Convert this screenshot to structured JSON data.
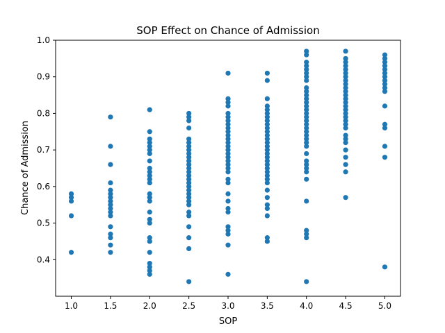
{
  "chart_data": {
    "type": "scatter",
    "title": "SOP Effect on Chance of Admission",
    "xlabel": "SOP",
    "ylabel": "Chance of Admission",
    "xlim": [
      0.8,
      5.2
    ],
    "ylim": [
      0.3,
      1.0
    ],
    "x_ticks": [
      "1.0",
      "1.5",
      "2.0",
      "2.5",
      "3.0",
      "3.5",
      "4.0",
      "4.5",
      "5.0"
    ],
    "y_ticks": [
      "0.4",
      "0.5",
      "0.6",
      "0.7",
      "0.8",
      "0.9",
      "1.0"
    ],
    "grid": false,
    "marker_color": "#1f77b4",
    "series": [
      {
        "points": [
          [
            1.0,
            0.58
          ],
          [
            1.0,
            0.57
          ],
          [
            1.0,
            0.56
          ],
          [
            1.0,
            0.52
          ],
          [
            1.0,
            0.42
          ],
          [
            1.5,
            0.79
          ],
          [
            1.5,
            0.71
          ],
          [
            1.5,
            0.66
          ],
          [
            1.5,
            0.61
          ],
          [
            1.5,
            0.59
          ],
          [
            1.5,
            0.58
          ],
          [
            1.5,
            0.57
          ],
          [
            1.5,
            0.56
          ],
          [
            1.5,
            0.55
          ],
          [
            1.5,
            0.54
          ],
          [
            1.5,
            0.53
          ],
          [
            1.5,
            0.52
          ],
          [
            1.5,
            0.49
          ],
          [
            1.5,
            0.47
          ],
          [
            1.5,
            0.46
          ],
          [
            1.5,
            0.44
          ],
          [
            1.5,
            0.42
          ],
          [
            2.0,
            0.81
          ],
          [
            2.0,
            0.75
          ],
          [
            2.0,
            0.73
          ],
          [
            2.0,
            0.72
          ],
          [
            2.0,
            0.71
          ],
          [
            2.0,
            0.7
          ],
          [
            2.0,
            0.69
          ],
          [
            2.0,
            0.67
          ],
          [
            2.0,
            0.65
          ],
          [
            2.0,
            0.64
          ],
          [
            2.0,
            0.63
          ],
          [
            2.0,
            0.62
          ],
          [
            2.0,
            0.61
          ],
          [
            2.0,
            0.58
          ],
          [
            2.0,
            0.57
          ],
          [
            2.0,
            0.56
          ],
          [
            2.0,
            0.53
          ],
          [
            2.0,
            0.51
          ],
          [
            2.0,
            0.5
          ],
          [
            2.0,
            0.46
          ],
          [
            2.0,
            0.45
          ],
          [
            2.0,
            0.42
          ],
          [
            2.0,
            0.39
          ],
          [
            2.0,
            0.38
          ],
          [
            2.0,
            0.37
          ],
          [
            2.0,
            0.36
          ],
          [
            2.5,
            0.8
          ],
          [
            2.5,
            0.79
          ],
          [
            2.5,
            0.78
          ],
          [
            2.5,
            0.76
          ],
          [
            2.5,
            0.73
          ],
          [
            2.5,
            0.72
          ],
          [
            2.5,
            0.71
          ],
          [
            2.5,
            0.7
          ],
          [
            2.5,
            0.69
          ],
          [
            2.5,
            0.68
          ],
          [
            2.5,
            0.67
          ],
          [
            2.5,
            0.66
          ],
          [
            2.5,
            0.65
          ],
          [
            2.5,
            0.64
          ],
          [
            2.5,
            0.63
          ],
          [
            2.5,
            0.62
          ],
          [
            2.5,
            0.61
          ],
          [
            2.5,
            0.6
          ],
          [
            2.5,
            0.59
          ],
          [
            2.5,
            0.58
          ],
          [
            2.5,
            0.57
          ],
          [
            2.5,
            0.56
          ],
          [
            2.5,
            0.55
          ],
          [
            2.5,
            0.53
          ],
          [
            2.5,
            0.52
          ],
          [
            2.5,
            0.49
          ],
          [
            2.5,
            0.46
          ],
          [
            2.5,
            0.43
          ],
          [
            2.5,
            0.34
          ],
          [
            3.0,
            0.91
          ],
          [
            3.0,
            0.84
          ],
          [
            3.0,
            0.83
          ],
          [
            3.0,
            0.82
          ],
          [
            3.0,
            0.8
          ],
          [
            3.0,
            0.79
          ],
          [
            3.0,
            0.78
          ],
          [
            3.0,
            0.77
          ],
          [
            3.0,
            0.76
          ],
          [
            3.0,
            0.75
          ],
          [
            3.0,
            0.74
          ],
          [
            3.0,
            0.73
          ],
          [
            3.0,
            0.72
          ],
          [
            3.0,
            0.71
          ],
          [
            3.0,
            0.7
          ],
          [
            3.0,
            0.69
          ],
          [
            3.0,
            0.68
          ],
          [
            3.0,
            0.67
          ],
          [
            3.0,
            0.66
          ],
          [
            3.0,
            0.65
          ],
          [
            3.0,
            0.64
          ],
          [
            3.0,
            0.62
          ],
          [
            3.0,
            0.61
          ],
          [
            3.0,
            0.58
          ],
          [
            3.0,
            0.56
          ],
          [
            3.0,
            0.54
          ],
          [
            3.0,
            0.53
          ],
          [
            3.0,
            0.49
          ],
          [
            3.0,
            0.48
          ],
          [
            3.0,
            0.47
          ],
          [
            3.0,
            0.44
          ],
          [
            3.0,
            0.36
          ],
          [
            3.5,
            0.91
          ],
          [
            3.5,
            0.89
          ],
          [
            3.5,
            0.84
          ],
          [
            3.5,
            0.82
          ],
          [
            3.5,
            0.81
          ],
          [
            3.5,
            0.8
          ],
          [
            3.5,
            0.79
          ],
          [
            3.5,
            0.78
          ],
          [
            3.5,
            0.77
          ],
          [
            3.5,
            0.76
          ],
          [
            3.5,
            0.75
          ],
          [
            3.5,
            0.74
          ],
          [
            3.5,
            0.73
          ],
          [
            3.5,
            0.72
          ],
          [
            3.5,
            0.71
          ],
          [
            3.5,
            0.7
          ],
          [
            3.5,
            0.69
          ],
          [
            3.5,
            0.68
          ],
          [
            3.5,
            0.67
          ],
          [
            3.5,
            0.66
          ],
          [
            3.5,
            0.65
          ],
          [
            3.5,
            0.64
          ],
          [
            3.5,
            0.63
          ],
          [
            3.5,
            0.62
          ],
          [
            3.5,
            0.61
          ],
          [
            3.5,
            0.59
          ],
          [
            3.5,
            0.57
          ],
          [
            3.5,
            0.55
          ],
          [
            3.5,
            0.54
          ],
          [
            3.5,
            0.52
          ],
          [
            3.5,
            0.46
          ],
          [
            3.5,
            0.45
          ],
          [
            4.0,
            0.97
          ],
          [
            4.0,
            0.96
          ],
          [
            4.0,
            0.94
          ],
          [
            4.0,
            0.93
          ],
          [
            4.0,
            0.92
          ],
          [
            4.0,
            0.91
          ],
          [
            4.0,
            0.9
          ],
          [
            4.0,
            0.89
          ],
          [
            4.0,
            0.87
          ],
          [
            4.0,
            0.86
          ],
          [
            4.0,
            0.85
          ],
          [
            4.0,
            0.84
          ],
          [
            4.0,
            0.83
          ],
          [
            4.0,
            0.82
          ],
          [
            4.0,
            0.81
          ],
          [
            4.0,
            0.8
          ],
          [
            4.0,
            0.79
          ],
          [
            4.0,
            0.78
          ],
          [
            4.0,
            0.77
          ],
          [
            4.0,
            0.76
          ],
          [
            4.0,
            0.75
          ],
          [
            4.0,
            0.74
          ],
          [
            4.0,
            0.73
          ],
          [
            4.0,
            0.72
          ],
          [
            4.0,
            0.71
          ],
          [
            4.0,
            0.69
          ],
          [
            4.0,
            0.67
          ],
          [
            4.0,
            0.66
          ],
          [
            4.0,
            0.65
          ],
          [
            4.0,
            0.64
          ],
          [
            4.0,
            0.62
          ],
          [
            4.0,
            0.56
          ],
          [
            4.0,
            0.48
          ],
          [
            4.0,
            0.47
          ],
          [
            4.0,
            0.46
          ],
          [
            4.0,
            0.34
          ],
          [
            4.5,
            0.97
          ],
          [
            4.5,
            0.95
          ],
          [
            4.5,
            0.94
          ],
          [
            4.5,
            0.93
          ],
          [
            4.5,
            0.92
          ],
          [
            4.5,
            0.91
          ],
          [
            4.5,
            0.9
          ],
          [
            4.5,
            0.89
          ],
          [
            4.5,
            0.88
          ],
          [
            4.5,
            0.87
          ],
          [
            4.5,
            0.86
          ],
          [
            4.5,
            0.85
          ],
          [
            4.5,
            0.84
          ],
          [
            4.5,
            0.83
          ],
          [
            4.5,
            0.82
          ],
          [
            4.5,
            0.81
          ],
          [
            4.5,
            0.8
          ],
          [
            4.5,
            0.79
          ],
          [
            4.5,
            0.78
          ],
          [
            4.5,
            0.77
          ],
          [
            4.5,
            0.76
          ],
          [
            4.5,
            0.74
          ],
          [
            4.5,
            0.73
          ],
          [
            4.5,
            0.72
          ],
          [
            4.5,
            0.7
          ],
          [
            4.5,
            0.68
          ],
          [
            4.5,
            0.66
          ],
          [
            4.5,
            0.64
          ],
          [
            4.5,
            0.57
          ],
          [
            5.0,
            0.96
          ],
          [
            5.0,
            0.95
          ],
          [
            5.0,
            0.94
          ],
          [
            5.0,
            0.93
          ],
          [
            5.0,
            0.92
          ],
          [
            5.0,
            0.91
          ],
          [
            5.0,
            0.9
          ],
          [
            5.0,
            0.89
          ],
          [
            5.0,
            0.88
          ],
          [
            5.0,
            0.87
          ],
          [
            5.0,
            0.86
          ],
          [
            5.0,
            0.82
          ],
          [
            5.0,
            0.77
          ],
          [
            5.0,
            0.76
          ],
          [
            5.0,
            0.71
          ],
          [
            5.0,
            0.68
          ],
          [
            5.0,
            0.38
          ]
        ]
      }
    ]
  }
}
